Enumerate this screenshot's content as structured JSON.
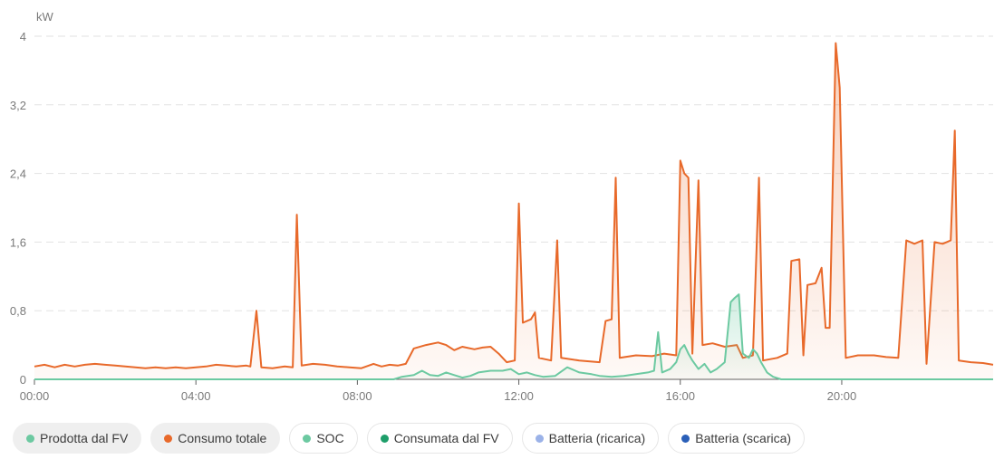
{
  "chart_data": {
    "type": "line",
    "unit_label": "kW",
    "y_ticks": [
      "4",
      "3,2",
      "2,4",
      "1,6",
      "0,8",
      "0"
    ],
    "y_tick_values": [
      4,
      3.2,
      2.4,
      1.6,
      0.8,
      0
    ],
    "ylim": [
      0,
      4
    ],
    "x_ticks": [
      "00:00",
      "04:00",
      "08:00",
      "12:00",
      "16:00",
      "20:00"
    ],
    "x_tick_hours": [
      0,
      4,
      8,
      12,
      16,
      20
    ],
    "xlim_hours": [
      0,
      23.75
    ],
    "grid": "horizontal dashed",
    "series": [
      {
        "name": "Consumo totale",
        "color": "#e8692a",
        "fill": true,
        "points": [
          [
            0,
            0.15
          ],
          [
            0.25,
            0.17
          ],
          [
            0.5,
            0.14
          ],
          [
            0.75,
            0.17
          ],
          [
            1,
            0.15
          ],
          [
            1.25,
            0.17
          ],
          [
            1.5,
            0.18
          ],
          [
            1.75,
            0.17
          ],
          [
            2,
            0.16
          ],
          [
            2.25,
            0.15
          ],
          [
            2.5,
            0.14
          ],
          [
            2.75,
            0.13
          ],
          [
            3,
            0.14
          ],
          [
            3.25,
            0.13
          ],
          [
            3.5,
            0.14
          ],
          [
            3.75,
            0.13
          ],
          [
            4,
            0.14
          ],
          [
            4.25,
            0.15
          ],
          [
            4.5,
            0.17
          ],
          [
            4.75,
            0.16
          ],
          [
            5,
            0.15
          ],
          [
            5.25,
            0.16
          ],
          [
            5.35,
            0.15
          ],
          [
            5.5,
            0.8
          ],
          [
            5.62,
            0.14
          ],
          [
            5.9,
            0.13
          ],
          [
            6.2,
            0.15
          ],
          [
            6.4,
            0.14
          ],
          [
            6.5,
            1.92
          ],
          [
            6.62,
            0.16
          ],
          [
            6.9,
            0.18
          ],
          [
            7.2,
            0.17
          ],
          [
            7.5,
            0.15
          ],
          [
            7.8,
            0.14
          ],
          [
            8.1,
            0.13
          ],
          [
            8.4,
            0.18
          ],
          [
            8.6,
            0.15
          ],
          [
            8.8,
            0.17
          ],
          [
            9.0,
            0.16
          ],
          [
            9.2,
            0.18
          ],
          [
            9.4,
            0.36
          ],
          [
            9.7,
            0.4
          ],
          [
            10.0,
            0.43
          ],
          [
            10.2,
            0.4
          ],
          [
            10.4,
            0.34
          ],
          [
            10.6,
            0.38
          ],
          [
            10.9,
            0.35
          ],
          [
            11.1,
            0.37
          ],
          [
            11.3,
            0.38
          ],
          [
            11.5,
            0.3
          ],
          [
            11.7,
            0.2
          ],
          [
            11.9,
            0.22
          ],
          [
            12.0,
            2.05
          ],
          [
            12.1,
            0.66
          ],
          [
            12.3,
            0.7
          ],
          [
            12.4,
            0.78
          ],
          [
            12.5,
            0.25
          ],
          [
            12.8,
            0.22
          ],
          [
            12.95,
            1.62
          ],
          [
            13.05,
            0.25
          ],
          [
            13.5,
            0.22
          ],
          [
            14.0,
            0.2
          ],
          [
            14.15,
            0.68
          ],
          [
            14.3,
            0.7
          ],
          [
            14.4,
            2.35
          ],
          [
            14.5,
            0.25
          ],
          [
            14.9,
            0.28
          ],
          [
            15.3,
            0.27
          ],
          [
            15.6,
            0.3
          ],
          [
            15.9,
            0.28
          ],
          [
            16.0,
            2.55
          ],
          [
            16.1,
            2.4
          ],
          [
            16.2,
            2.35
          ],
          [
            16.3,
            0.3
          ],
          [
            16.45,
            2.32
          ],
          [
            16.55,
            0.4
          ],
          [
            16.8,
            0.42
          ],
          [
            17.1,
            0.38
          ],
          [
            17.4,
            0.4
          ],
          [
            17.55,
            0.25
          ],
          [
            17.8,
            0.28
          ],
          [
            17.95,
            2.35
          ],
          [
            18.05,
            0.22
          ],
          [
            18.4,
            0.25
          ],
          [
            18.65,
            0.3
          ],
          [
            18.75,
            1.38
          ],
          [
            18.95,
            1.4
          ],
          [
            19.05,
            0.28
          ],
          [
            19.15,
            1.1
          ],
          [
            19.35,
            1.12
          ],
          [
            19.5,
            1.3
          ],
          [
            19.6,
            0.6
          ],
          [
            19.7,
            0.6
          ],
          [
            19.85,
            3.92
          ],
          [
            19.95,
            3.4
          ],
          [
            20.1,
            0.25
          ],
          [
            20.4,
            0.28
          ],
          [
            20.8,
            0.28
          ],
          [
            21.1,
            0.26
          ],
          [
            21.4,
            0.25
          ],
          [
            21.6,
            1.62
          ],
          [
            21.8,
            1.58
          ],
          [
            22.0,
            1.62
          ],
          [
            22.1,
            0.18
          ],
          [
            22.3,
            1.6
          ],
          [
            22.5,
            1.58
          ],
          [
            22.6,
            1.6
          ],
          [
            22.7,
            1.62
          ],
          [
            22.8,
            2.9
          ],
          [
            22.9,
            0.22
          ],
          [
            23.2,
            0.2
          ],
          [
            23.5,
            0.19
          ],
          [
            23.75,
            0.17
          ]
        ]
      },
      {
        "name": "Prodotta dal FV",
        "color": "#6cc9a1",
        "fill": true,
        "points": [
          [
            0,
            0
          ],
          [
            8.9,
            0
          ],
          [
            9.1,
            0.03
          ],
          [
            9.4,
            0.05
          ],
          [
            9.6,
            0.1
          ],
          [
            9.8,
            0.05
          ],
          [
            10.0,
            0.04
          ],
          [
            10.2,
            0.08
          ],
          [
            10.4,
            0.05
          ],
          [
            10.6,
            0.02
          ],
          [
            10.8,
            0.04
          ],
          [
            11.0,
            0.08
          ],
          [
            11.3,
            0.1
          ],
          [
            11.6,
            0.1
          ],
          [
            11.8,
            0.12
          ],
          [
            12.0,
            0.06
          ],
          [
            12.2,
            0.08
          ],
          [
            12.4,
            0.05
          ],
          [
            12.6,
            0.03
          ],
          [
            12.9,
            0.04
          ],
          [
            13.2,
            0.14
          ],
          [
            13.5,
            0.08
          ],
          [
            13.8,
            0.06
          ],
          [
            14.0,
            0.04
          ],
          [
            14.3,
            0.03
          ],
          [
            14.6,
            0.04
          ],
          [
            14.9,
            0.06
          ],
          [
            15.2,
            0.08
          ],
          [
            15.35,
            0.1
          ],
          [
            15.45,
            0.55
          ],
          [
            15.55,
            0.08
          ],
          [
            15.75,
            0.12
          ],
          [
            15.9,
            0.2
          ],
          [
            16.0,
            0.35
          ],
          [
            16.1,
            0.4
          ],
          [
            16.2,
            0.3
          ],
          [
            16.3,
            0.22
          ],
          [
            16.45,
            0.12
          ],
          [
            16.6,
            0.18
          ],
          [
            16.75,
            0.08
          ],
          [
            16.9,
            0.12
          ],
          [
            17.1,
            0.2
          ],
          [
            17.25,
            0.9
          ],
          [
            17.35,
            0.95
          ],
          [
            17.45,
            0.99
          ],
          [
            17.55,
            0.3
          ],
          [
            17.7,
            0.25
          ],
          [
            17.8,
            0.35
          ],
          [
            17.9,
            0.3
          ],
          [
            18.0,
            0.2
          ],
          [
            18.15,
            0.08
          ],
          [
            18.3,
            0.03
          ],
          [
            18.5,
            0
          ],
          [
            23.75,
            0
          ]
        ]
      }
    ]
  },
  "legend": [
    {
      "label": "Prodotta dal FV",
      "color": "#6cc9a1",
      "active": true
    },
    {
      "label": "Consumo totale",
      "color": "#e8692a",
      "active": true
    },
    {
      "label": "SOC",
      "color": "#6cc9a1",
      "active": false
    },
    {
      "label": "Consumata dal FV",
      "color": "#1e9e6a",
      "active": false
    },
    {
      "label": "Batteria (ricarica)",
      "color": "#9bb2e8",
      "active": false
    },
    {
      "label": "Batteria (scarica)",
      "color": "#2a5fb8",
      "active": false
    }
  ]
}
